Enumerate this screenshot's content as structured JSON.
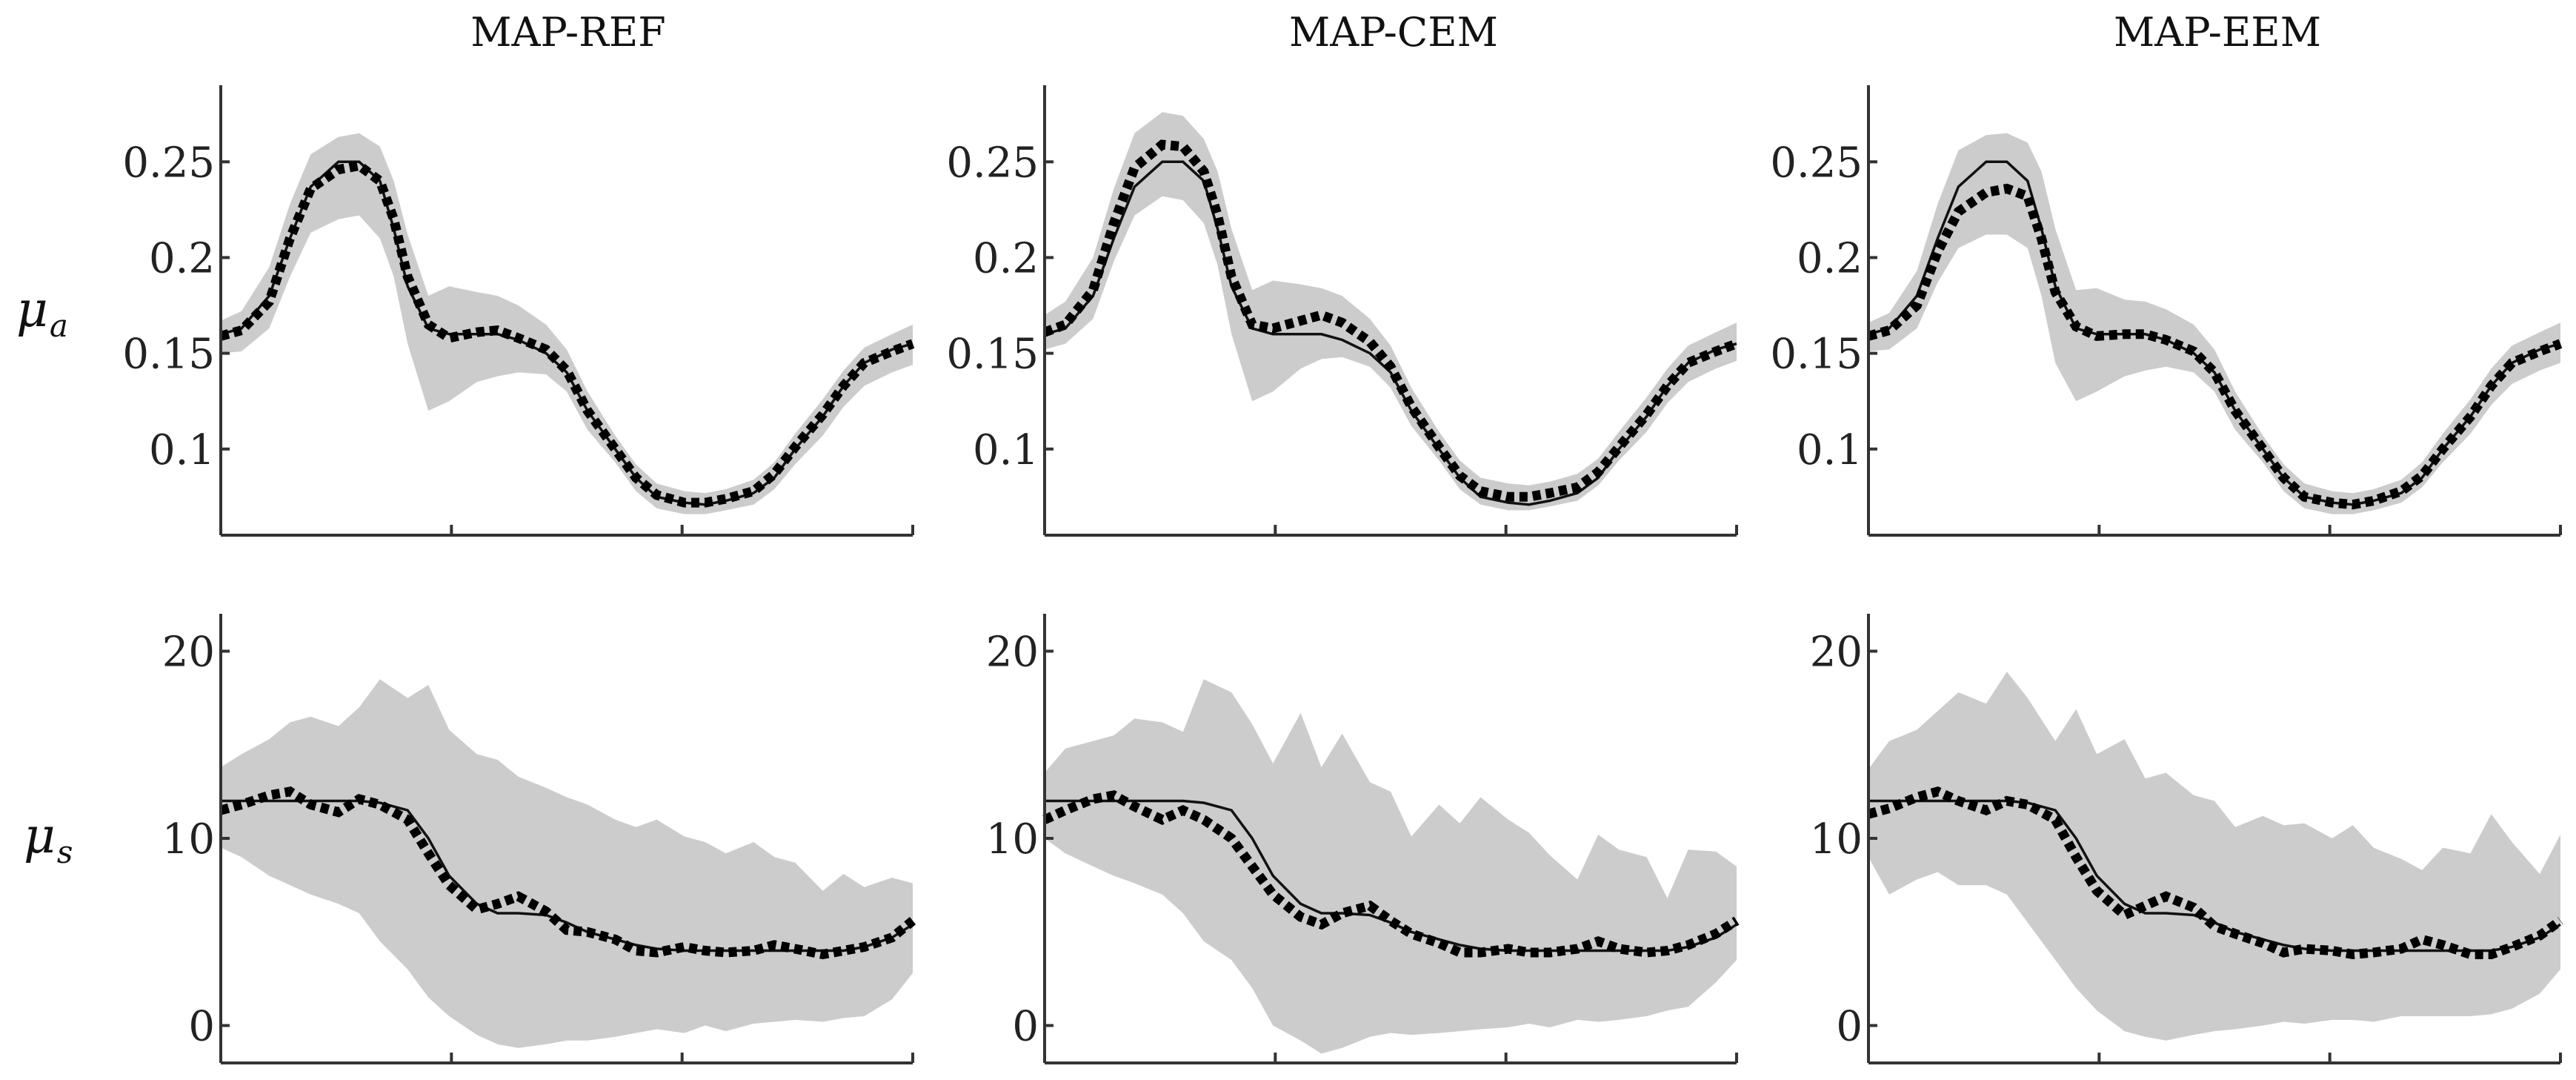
{
  "chart_data": {
    "type": "line",
    "row_labels": [
      {
        "symbol": "μ",
        "subscript": "a"
      },
      {
        "symbol": "μ",
        "subscript": "s"
      }
    ],
    "columns": [
      "MAP-REF",
      "MAP-CEM",
      "MAP-EEM"
    ],
    "rows": [
      {
        "ylim": [
          0.055,
          0.29
        ],
        "yticks": [
          {
            "value": 0.1,
            "label": "0.1"
          },
          {
            "value": 0.15,
            "label": "0.15"
          },
          {
            "value": 0.2,
            "label": "0.2"
          },
          {
            "value": 0.25,
            "label": "0.25"
          }
        ],
        "x": [
          0.0,
          0.03,
          0.07,
          0.1,
          0.13,
          0.17,
          0.2,
          0.23,
          0.25,
          0.27,
          0.3,
          0.33,
          0.37,
          0.4,
          0.43,
          0.47,
          0.5,
          0.53,
          0.57,
          0.6,
          0.63,
          0.67,
          0.7,
          0.73,
          0.77,
          0.8,
          0.83,
          0.87,
          0.9,
          0.93,
          0.97,
          1.0
        ],
        "truth": [
          0.16,
          0.163,
          0.18,
          0.21,
          0.237,
          0.25,
          0.25,
          0.24,
          0.215,
          0.185,
          0.163,
          0.16,
          0.16,
          0.16,
          0.157,
          0.15,
          0.14,
          0.12,
          0.1,
          0.085,
          0.075,
          0.072,
          0.071,
          0.073,
          0.077,
          0.085,
          0.1,
          0.117,
          0.133,
          0.145,
          0.152,
          0.155
        ]
      },
      {
        "ylim": [
          -2,
          22
        ],
        "yticks": [
          {
            "value": 0,
            "label": "0"
          },
          {
            "value": 10,
            "label": "10"
          },
          {
            "value": 20,
            "label": "20"
          }
        ],
        "x": [
          0.0,
          0.03,
          0.07,
          0.1,
          0.13,
          0.17,
          0.2,
          0.23,
          0.27,
          0.3,
          0.33,
          0.37,
          0.4,
          0.43,
          0.47,
          0.5,
          0.53,
          0.57,
          0.6,
          0.63,
          0.67,
          0.7,
          0.73,
          0.77,
          0.8,
          0.83,
          0.87,
          0.9,
          0.93,
          0.97,
          1.0
        ],
        "truth": [
          12,
          12,
          12,
          12,
          12,
          12,
          12,
          11.9,
          11.5,
          10,
          8,
          6.5,
          6,
          6,
          5.9,
          5.5,
          5,
          4.6,
          4.3,
          4.1,
          4.0,
          4.0,
          4.0,
          4.0,
          4.0,
          4.0,
          4.0,
          4.0,
          4.2,
          4.7,
          5.4
        ]
      }
    ],
    "panels": [
      {
        "row": 0,
        "col": 0,
        "title": "MAP-REF",
        "estimate": [
          0.159,
          0.162,
          0.177,
          0.21,
          0.236,
          0.246,
          0.248,
          0.24,
          0.22,
          0.19,
          0.165,
          0.158,
          0.161,
          0.162,
          0.158,
          0.152,
          0.141,
          0.12,
          0.1,
          0.085,
          0.076,
          0.072,
          0.072,
          0.074,
          0.078,
          0.087,
          0.101,
          0.118,
          0.133,
          0.145,
          0.151,
          0.155
        ],
        "lower": [
          0.15,
          0.151,
          0.163,
          0.19,
          0.213,
          0.22,
          0.222,
          0.21,
          0.19,
          0.155,
          0.12,
          0.125,
          0.135,
          0.138,
          0.14,
          0.139,
          0.13,
          0.11,
          0.093,
          0.078,
          0.069,
          0.066,
          0.066,
          0.068,
          0.071,
          0.079,
          0.092,
          0.107,
          0.122,
          0.133,
          0.14,
          0.144
        ],
        "upper": [
          0.167,
          0.172,
          0.195,
          0.228,
          0.254,
          0.263,
          0.265,
          0.258,
          0.24,
          0.212,
          0.18,
          0.185,
          0.182,
          0.18,
          0.175,
          0.165,
          0.152,
          0.13,
          0.107,
          0.092,
          0.082,
          0.078,
          0.077,
          0.079,
          0.084,
          0.093,
          0.108,
          0.126,
          0.141,
          0.153,
          0.16,
          0.165
        ]
      },
      {
        "row": 0,
        "col": 1,
        "title": "MAP-CEM",
        "estimate": [
          0.161,
          0.165,
          0.183,
          0.218,
          0.247,
          0.259,
          0.258,
          0.245,
          0.222,
          0.19,
          0.165,
          0.163,
          0.167,
          0.17,
          0.166,
          0.156,
          0.143,
          0.122,
          0.101,
          0.086,
          0.078,
          0.075,
          0.075,
          0.077,
          0.08,
          0.088,
          0.101,
          0.118,
          0.133,
          0.145,
          0.151,
          0.155
        ],
        "lower": [
          0.152,
          0.155,
          0.168,
          0.198,
          0.222,
          0.232,
          0.23,
          0.218,
          0.196,
          0.16,
          0.125,
          0.13,
          0.142,
          0.147,
          0.148,
          0.143,
          0.132,
          0.112,
          0.094,
          0.079,
          0.071,
          0.068,
          0.068,
          0.07,
          0.073,
          0.081,
          0.094,
          0.109,
          0.124,
          0.135,
          0.142,
          0.146
        ],
        "upper": [
          0.17,
          0.177,
          0.2,
          0.236,
          0.265,
          0.276,
          0.274,
          0.262,
          0.245,
          0.215,
          0.183,
          0.188,
          0.186,
          0.184,
          0.18,
          0.168,
          0.154,
          0.132,
          0.109,
          0.094,
          0.085,
          0.082,
          0.081,
          0.083,
          0.087,
          0.095,
          0.109,
          0.127,
          0.142,
          0.154,
          0.161,
          0.166
        ]
      },
      {
        "row": 0,
        "col": 2,
        "title": "MAP-EEM",
        "estimate": [
          0.159,
          0.162,
          0.175,
          0.203,
          0.224,
          0.234,
          0.236,
          0.232,
          0.21,
          0.182,
          0.164,
          0.159,
          0.16,
          0.16,
          0.157,
          0.151,
          0.14,
          0.12,
          0.1,
          0.085,
          0.075,
          0.072,
          0.071,
          0.073,
          0.078,
          0.086,
          0.1,
          0.117,
          0.133,
          0.145,
          0.151,
          0.155
        ],
        "lower": [
          0.151,
          0.152,
          0.163,
          0.187,
          0.205,
          0.212,
          0.212,
          0.205,
          0.18,
          0.145,
          0.125,
          0.13,
          0.138,
          0.141,
          0.143,
          0.14,
          0.13,
          0.11,
          0.093,
          0.078,
          0.069,
          0.066,
          0.066,
          0.068,
          0.072,
          0.08,
          0.093,
          0.108,
          0.123,
          0.134,
          0.141,
          0.145
        ],
        "upper": [
          0.166,
          0.171,
          0.193,
          0.228,
          0.256,
          0.264,
          0.265,
          0.26,
          0.245,
          0.215,
          0.183,
          0.184,
          0.178,
          0.177,
          0.173,
          0.165,
          0.152,
          0.13,
          0.107,
          0.092,
          0.082,
          0.078,
          0.077,
          0.079,
          0.084,
          0.093,
          0.108,
          0.126,
          0.142,
          0.154,
          0.161,
          0.166
        ]
      },
      {
        "row": 1,
        "col": 0,
        "title": "MAP-REF",
        "estimate": [
          11.5,
          11.8,
          12.3,
          12.5,
          11.8,
          11.4,
          12.1,
          11.8,
          11.0,
          9.2,
          7.5,
          6.2,
          6.5,
          6.9,
          6.1,
          5.1,
          5.0,
          4.6,
          4.0,
          3.9,
          4.2,
          4.0,
          3.9,
          4.0,
          4.3,
          4.1,
          3.8,
          4.0,
          4.2,
          4.7,
          5.6
        ],
        "lower": [
          9.5,
          9.0,
          8.0,
          7.5,
          7.0,
          6.5,
          6.0,
          4.5,
          3.0,
          1.5,
          0.5,
          -0.5,
          -1.0,
          -1.2,
          -1.0,
          -0.8,
          -0.8,
          -0.6,
          -0.4,
          -0.2,
          -0.4,
          0.0,
          -0.3,
          0.1,
          0.2,
          0.3,
          0.2,
          0.4,
          0.5,
          1.4,
          2.8
        ],
        "upper": [
          13.8,
          14.5,
          15.3,
          16.2,
          16.5,
          16.0,
          17.0,
          18.5,
          17.5,
          18.2,
          15.8,
          14.5,
          14.2,
          13.3,
          12.7,
          12.2,
          11.8,
          11.0,
          10.6,
          11.0,
          10.1,
          9.8,
          9.2,
          9.8,
          9.0,
          8.7,
          7.2,
          8.1,
          7.4,
          7.9,
          7.6
        ]
      },
      {
        "row": 1,
        "col": 1,
        "title": "MAP-CEM",
        "estimate": [
          11.0,
          11.5,
          12.1,
          12.3,
          11.7,
          11.0,
          11.5,
          11.0,
          10.0,
          8.5,
          7.0,
          5.8,
          5.4,
          6.0,
          6.4,
          5.6,
          4.9,
          4.4,
          3.9,
          3.9,
          4.1,
          3.9,
          3.9,
          4.1,
          4.5,
          4.1,
          3.9,
          4.0,
          4.3,
          4.9,
          5.6
        ],
        "lower": [
          10.0,
          9.2,
          8.5,
          8.0,
          7.6,
          7.0,
          6.0,
          4.5,
          3.5,
          2.0,
          0.0,
          -0.8,
          -1.5,
          -1.2,
          -0.6,
          -0.4,
          -0.5,
          -0.4,
          -0.3,
          -0.2,
          -0.1,
          0.1,
          -0.1,
          0.3,
          0.2,
          0.3,
          0.5,
          0.8,
          1.0,
          2.3,
          3.5
        ],
        "upper": [
          13.5,
          14.8,
          15.2,
          15.5,
          16.4,
          16.2,
          15.7,
          18.5,
          17.8,
          16.1,
          14.0,
          16.7,
          13.8,
          15.6,
          13.0,
          12.5,
          10.1,
          11.8,
          10.8,
          12.2,
          11.0,
          10.3,
          9.1,
          7.8,
          10.2,
          9.4,
          9.0,
          6.8,
          9.4,
          9.3,
          8.5
        ]
      },
      {
        "row": 1,
        "col": 2,
        "title": "MAP-EEM",
        "estimate": [
          11.3,
          11.6,
          12.2,
          12.5,
          12.0,
          11.5,
          12.0,
          11.8,
          11.0,
          9.0,
          7.2,
          5.9,
          6.4,
          6.9,
          6.3,
          5.3,
          4.9,
          4.4,
          3.9,
          4.1,
          4.0,
          3.8,
          3.9,
          4.1,
          4.6,
          4.3,
          3.8,
          3.8,
          4.2,
          4.8,
          5.6
        ],
        "lower": [
          9.0,
          7.0,
          7.8,
          8.2,
          7.5,
          7.5,
          7.0,
          5.5,
          3.5,
          2.0,
          0.8,
          -0.3,
          -0.6,
          -0.8,
          -0.5,
          -0.3,
          -0.2,
          0.0,
          0.2,
          0.1,
          0.3,
          0.3,
          0.2,
          0.5,
          0.5,
          0.5,
          0.5,
          0.6,
          0.9,
          1.7,
          3.0
        ],
        "upper": [
          13.7,
          15.2,
          15.8,
          16.8,
          17.8,
          17.2,
          18.9,
          17.5,
          15.2,
          16.9,
          14.5,
          15.3,
          13.2,
          13.5,
          12.3,
          12.0,
          10.6,
          11.2,
          10.7,
          10.8,
          10.0,
          10.7,
          9.5,
          8.9,
          8.3,
          9.5,
          9.2,
          11.3,
          9.8,
          8.1,
          10.2
        ]
      }
    ]
  }
}
